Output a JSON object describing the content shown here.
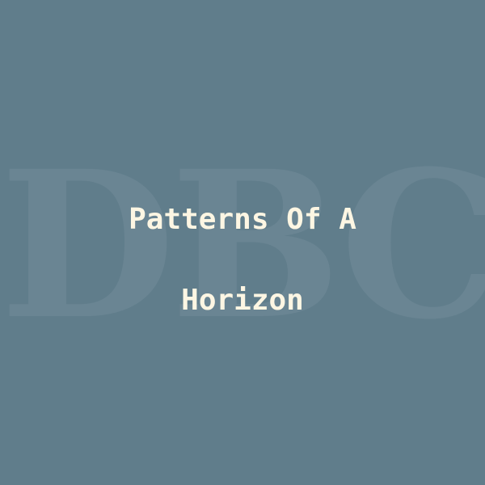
{
  "cover": {
    "watermark": "DBC",
    "title_lines": [
      "Patterns Of A",
      "Horizon"
    ]
  },
  "colors": {
    "background": "#607D8B",
    "watermark": "#6A8593",
    "title": "#FDF6E3"
  }
}
